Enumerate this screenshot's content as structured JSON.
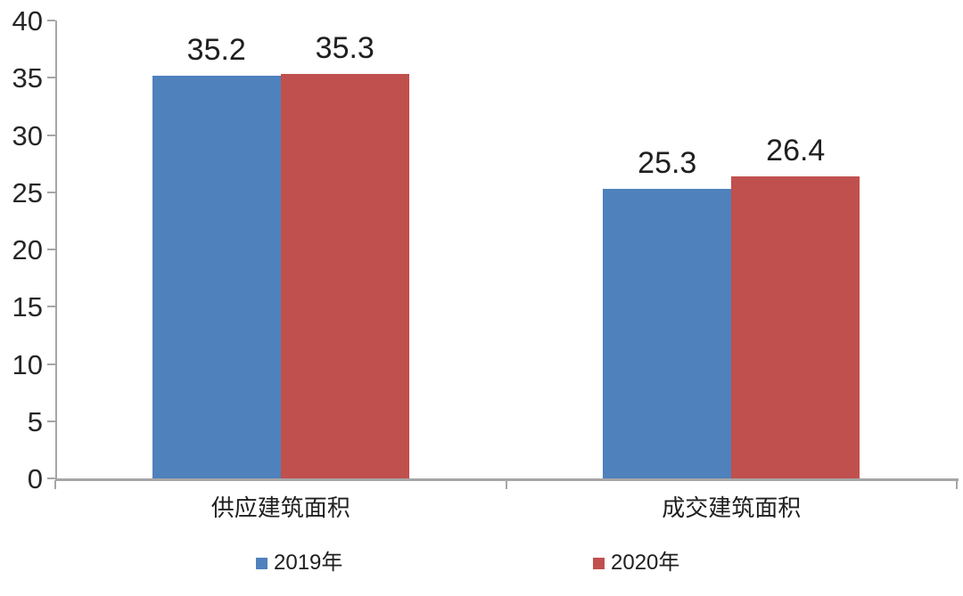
{
  "chart_data": {
    "type": "bar",
    "categories": [
      "供应建筑面积",
      "成交建筑面积"
    ],
    "series": [
      {
        "name": "2019年",
        "color": "#4F81BD",
        "values": [
          35.2,
          25.3
        ]
      },
      {
        "name": "2020年",
        "color": "#C0504D",
        "values": [
          35.3,
          26.4
        ]
      }
    ],
    "title": "",
    "xlabel": "",
    "ylabel": "",
    "ylim": [
      0,
      40
    ],
    "yticks": [
      0,
      5,
      10,
      15,
      20,
      25,
      30,
      35,
      40
    ],
    "grid": false,
    "show_value_labels": true,
    "value_decimals": 1,
    "legend_position": "bottom",
    "colors": {
      "axis": "#A6A6A6",
      "tick_label_text": "#262626",
      "value_label_text": "#1f1f1f",
      "category_label_text": "#1f1f1f",
      "legend_text": "#1f1f1f",
      "background": "#FFFFFF"
    }
  }
}
